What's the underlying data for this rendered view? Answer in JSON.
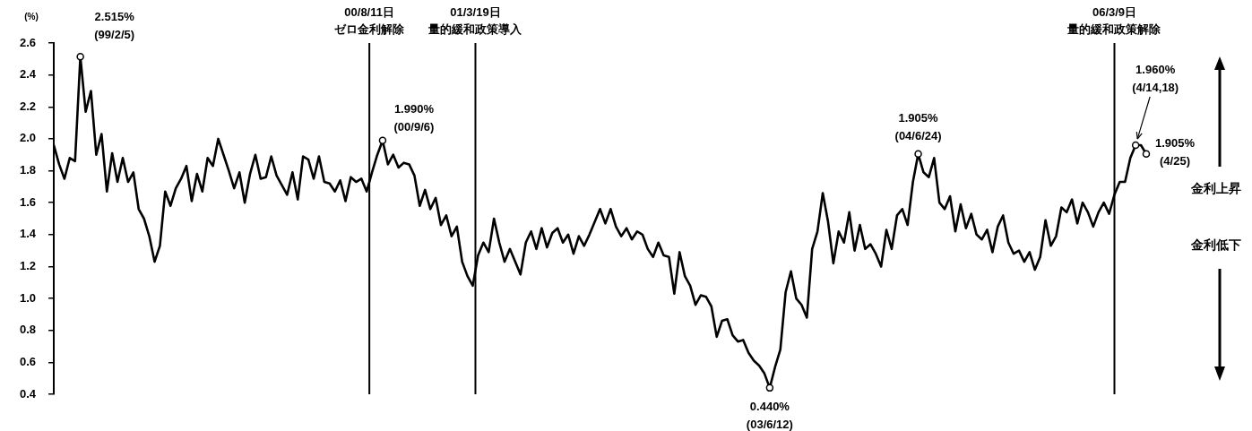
{
  "chart_data": {
    "type": "line",
    "ylabel": "(%)",
    "color": "#000000",
    "marker": "none",
    "line_style": "solid",
    "grid": false,
    "legend": false,
    "tick_labels": "y",
    "ylim": [
      0.4,
      2.6
    ],
    "yticks": [
      0.4,
      0.6,
      0.8,
      {
        "value": 1,
        "label": "1.0"
      },
      1.2,
      1.4,
      1.6,
      1.8,
      {
        "value": 2,
        "label": "2.0"
      },
      2.2,
      2.4,
      2.6
    ],
    "categories": [
      null,
      null,
      null,
      null,
      null,
      null,
      null,
      null,
      null,
      null,
      null,
      null,
      null,
      null,
      null,
      null,
      null,
      null,
      null,
      null,
      null,
      null,
      null,
      null,
      null,
      null,
      null,
      null,
      null,
      null,
      null,
      null,
      null,
      null,
      null,
      null,
      null,
      null,
      null,
      null,
      null,
      null,
      null,
      null,
      null,
      null,
      null,
      null,
      null,
      null,
      null,
      null,
      null,
      null,
      null,
      null,
      null,
      null,
      null,
      null,
      null,
      null,
      null,
      null,
      null,
      null,
      null,
      null,
      null,
      null,
      null,
      null,
      null,
      null,
      null,
      null,
      null,
      null,
      null,
      null,
      null,
      null,
      null,
      null,
      null,
      null,
      null,
      null,
      null,
      null,
      null,
      null,
      null,
      null,
      null,
      null,
      null,
      null,
      null,
      null,
      null,
      null,
      null,
      null,
      null,
      null,
      null,
      null,
      null,
      null,
      null,
      null,
      null,
      null,
      null,
      null,
      null,
      null,
      null,
      null,
      null,
      null,
      null,
      null,
      null,
      null,
      null,
      null,
      null,
      null,
      null,
      null,
      null,
      null,
      null,
      null,
      null,
      null,
      null,
      null,
      null,
      null,
      null,
      null,
      null,
      null,
      null,
      null,
      null,
      null,
      null,
      null,
      null,
      null,
      null,
      null,
      null,
      null,
      null,
      null,
      null,
      null,
      null,
      null,
      null,
      null,
      null,
      null,
      null,
      null,
      null,
      null,
      null,
      null,
      null,
      null,
      null,
      null,
      null,
      null,
      null,
      null,
      null,
      null,
      null,
      null,
      null,
      null,
      null,
      null,
      null,
      null,
      null,
      null,
      null,
      null,
      null,
      null,
      null,
      null,
      null,
      null,
      null,
      null,
      null,
      null,
      null
    ],
    "values": [
      1.96,
      1.84,
      1.75,
      1.88,
      1.86,
      2.515,
      2.17,
      2.3,
      1.9,
      2.03,
      1.67,
      1.91,
      1.73,
      1.88,
      1.73,
      1.79,
      1.56,
      1.5,
      1.39,
      1.23,
      1.33,
      1.67,
      1.58,
      1.69,
      1.75,
      1.83,
      1.61,
      1.78,
      1.67,
      1.88,
      1.83,
      2.0,
      1.9,
      1.8,
      1.69,
      1.79,
      1.6,
      1.78,
      1.9,
      1.75,
      1.76,
      1.89,
      1.77,
      1.71,
      1.65,
      1.79,
      1.62,
      1.89,
      1.87,
      1.75,
      1.89,
      1.73,
      1.72,
      1.67,
      1.74,
      1.61,
      1.76,
      1.73,
      1.75,
      1.67,
      1.79,
      1.9,
      1.99,
      1.84,
      1.9,
      1.82,
      1.85,
      1.84,
      1.77,
      1.58,
      1.68,
      1.56,
      1.63,
      1.46,
      1.52,
      1.39,
      1.45,
      1.23,
      1.14,
      1.08,
      1.27,
      1.35,
      1.29,
      1.5,
      1.35,
      1.23,
      1.31,
      1.23,
      1.15,
      1.35,
      1.42,
      1.31,
      1.44,
      1.32,
      1.41,
      1.44,
      1.35,
      1.4,
      1.28,
      1.39,
      1.33,
      1.4,
      1.48,
      1.56,
      1.47,
      1.56,
      1.45,
      1.39,
      1.44,
      1.37,
      1.42,
      1.4,
      1.31,
      1.26,
      1.35,
      1.27,
      1.26,
      1.03,
      1.29,
      1.14,
      1.08,
      0.96,
      1.02,
      1.01,
      0.95,
      0.76,
      0.86,
      0.87,
      0.77,
      0.73,
      0.74,
      0.66,
      0.61,
      0.58,
      0.53,
      0.44,
      0.57,
      0.68,
      1.04,
      1.17,
      1.0,
      0.96,
      0.88,
      1.31,
      1.42,
      1.66,
      1.48,
      1.22,
      1.42,
      1.35,
      1.54,
      1.3,
      1.46,
      1.31,
      1.34,
      1.28,
      1.2,
      1.43,
      1.31,
      1.52,
      1.56,
      1.46,
      1.73,
      1.905,
      1.79,
      1.76,
      1.88,
      1.6,
      1.56,
      1.64,
      1.42,
      1.59,
      1.44,
      1.53,
      1.4,
      1.37,
      1.43,
      1.29,
      1.45,
      1.52,
      1.35,
      1.28,
      1.3,
      1.23,
      1.29,
      1.18,
      1.26,
      1.49,
      1.33,
      1.39,
      1.57,
      1.54,
      1.62,
      1.47,
      1.6,
      1.54,
      1.45,
      1.54,
      1.6,
      1.53,
      1.65,
      1.73,
      1.73,
      1.88,
      1.96,
      1.96,
      1.905
    ],
    "annotations": [
      "2.515%\n(99/2/5)",
      "1.990%\n(00/9/6)",
      "0.440%\n(03/6/12)",
      "1.905%\n(04/6/24)",
      "1.960%\n(4/14,18)",
      "1.905%\n(4/25)",
      "00/8/11日",
      "ゼロ金利解除",
      "01/3/19日",
      "量的緩和政策導入",
      "06/3/9日",
      "量的緩和政策解除",
      "金利上昇",
      "金利低下"
    ]
  }
}
